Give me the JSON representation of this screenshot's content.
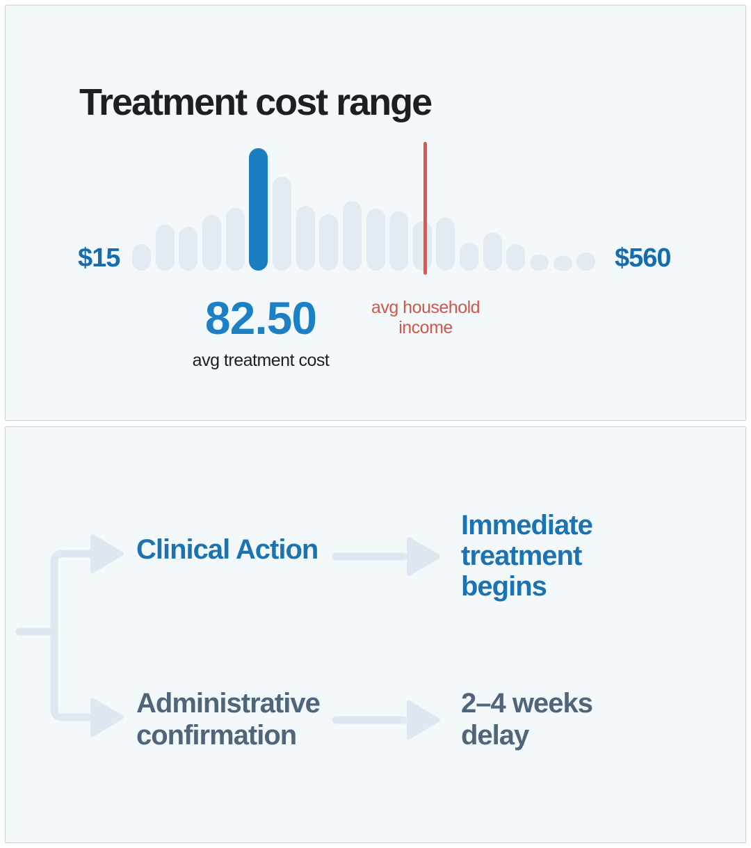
{
  "page": {
    "background": "#ffffff",
    "card_background": "#f3f8fb",
    "card_border": "#ccd1d6"
  },
  "top_card": {
    "title": "Treatment cost range",
    "chart": {
      "min_label": "$15",
      "max_label": "$560",
      "avg_treatment_cost_value": "82.50",
      "avg_treatment_cost_label": "avg treatment cost",
      "income_marker_label": "avg household income"
    }
  },
  "chart_data": {
    "type": "bar",
    "title": "Treatment cost range",
    "xlabel": "",
    "ylabel": "",
    "x_range_labels": [
      "$15",
      "$560"
    ],
    "values": [
      38,
      66,
      63,
      80,
      90,
      176,
      135,
      93,
      81,
      100,
      89,
      85,
      71,
      76,
      40,
      55,
      38,
      23,
      21,
      26
    ],
    "values_unit": "relative bar height as drawn (px)",
    "bar_color": "#e3eaf1",
    "highlighted_bar_index": 5,
    "highlight_color": "#1c7ec2",
    "grid": false,
    "legend": "none",
    "annotations": [
      {
        "type": "highlighted-bar-callout",
        "value": "82.50",
        "label": "avg treatment cost",
        "color": "#1d80c4"
      },
      {
        "type": "vertical-line",
        "label": "avg household income",
        "color": "#e5564a",
        "position_fraction_of_range": 0.63
      }
    ]
  },
  "bottom_card": {
    "branches": [
      {
        "label": "Clinical Action",
        "outcome": "Immediate treatment begins",
        "color": "#1d73b2"
      },
      {
        "label": "Administrative confirmation",
        "outcome": "2–4 weeks delay",
        "color": "#50647a"
      }
    ],
    "connector_color": "#dfe8f0"
  }
}
